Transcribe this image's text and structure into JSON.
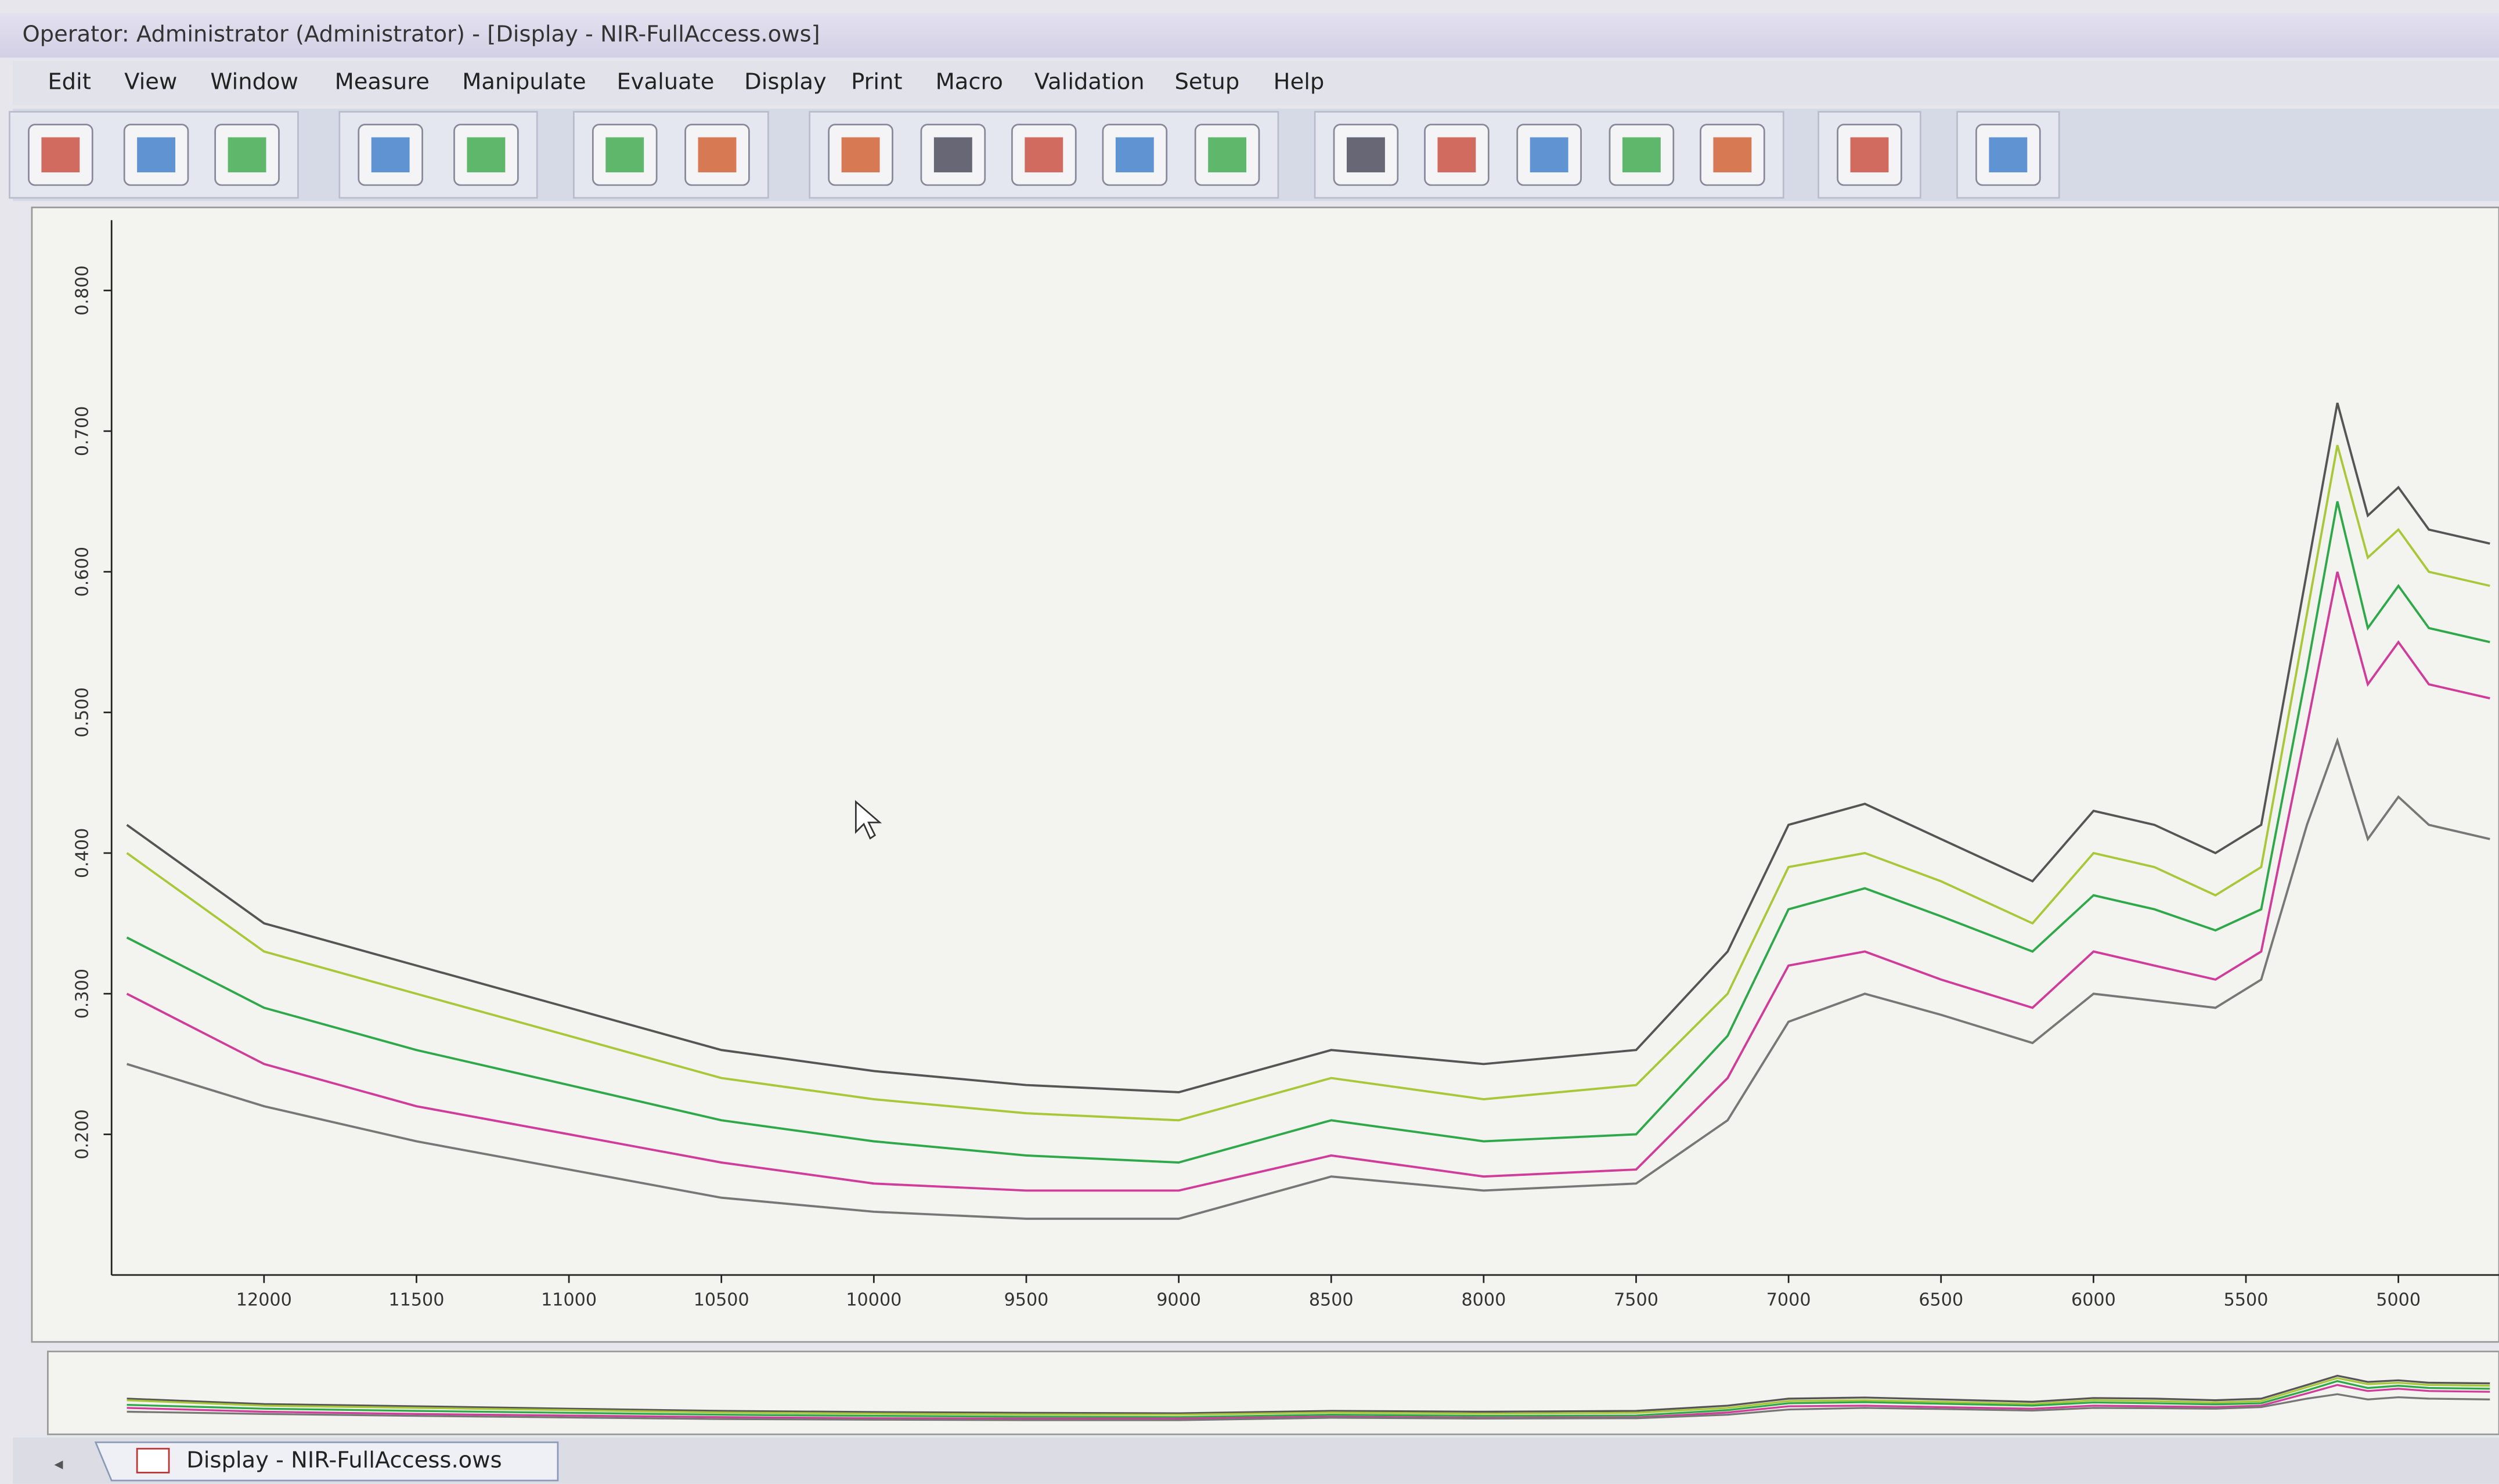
{
  "window": {
    "title": "Operator: Administrator (Administrator) - [Display - NIR-FullAccess.ows]",
    "menu": [
      "Edit",
      "View",
      "Window",
      "Measure",
      "Manipulate",
      "Evaluate",
      "Display",
      "Print",
      "Macro",
      "Validation",
      "Setup",
      "Help"
    ],
    "tab": "Display - NIR-FullAccess.ows"
  },
  "chart_data": {
    "type": "line",
    "x": [
      12450,
      12000,
      11500,
      11000,
      10500,
      10000,
      9500,
      9000,
      8500,
      8000,
      7500,
      7200,
      7000,
      6750,
      6500,
      6200,
      6000,
      5800,
      5600,
      5450,
      5300,
      5200,
      5100,
      5000,
      4900,
      4700
    ],
    "series": [
      {
        "color": "#555555",
        "values": [
          0.42,
          0.35,
          0.32,
          0.29,
          0.26,
          0.245,
          0.235,
          0.23,
          0.26,
          0.25,
          0.26,
          0.33,
          0.42,
          0.435,
          0.41,
          0.38,
          0.43,
          0.42,
          0.4,
          0.42,
          0.6,
          0.72,
          0.64,
          0.66,
          0.63,
          0.62
        ]
      },
      {
        "color": "#a8c83a",
        "values": [
          0.4,
          0.33,
          0.3,
          0.27,
          0.24,
          0.225,
          0.215,
          0.21,
          0.24,
          0.225,
          0.235,
          0.3,
          0.39,
          0.4,
          0.38,
          0.35,
          0.4,
          0.39,
          0.37,
          0.39,
          0.57,
          0.69,
          0.61,
          0.63,
          0.6,
          0.59
        ]
      },
      {
        "color": "#2fa84a",
        "values": [
          0.34,
          0.29,
          0.26,
          0.235,
          0.21,
          0.195,
          0.185,
          0.18,
          0.21,
          0.195,
          0.2,
          0.27,
          0.36,
          0.375,
          0.355,
          0.33,
          0.37,
          0.36,
          0.345,
          0.36,
          0.53,
          0.65,
          0.56,
          0.59,
          0.56,
          0.55
        ]
      },
      {
        "color": "#d03c9a",
        "values": [
          0.3,
          0.25,
          0.22,
          0.2,
          0.18,
          0.165,
          0.16,
          0.16,
          0.185,
          0.17,
          0.175,
          0.24,
          0.32,
          0.33,
          0.31,
          0.29,
          0.33,
          0.32,
          0.31,
          0.33,
          0.49,
          0.6,
          0.52,
          0.55,
          0.52,
          0.51
        ]
      },
      {
        "color": "#777777",
        "values": [
          0.25,
          0.22,
          0.195,
          0.175,
          0.155,
          0.145,
          0.14,
          0.14,
          0.17,
          0.16,
          0.165,
          0.21,
          0.28,
          0.3,
          0.285,
          0.265,
          0.3,
          0.295,
          0.29,
          0.31,
          0.42,
          0.48,
          0.41,
          0.44,
          0.42,
          0.41
        ]
      }
    ],
    "xlim": [
      12500,
      4670
    ],
    "xticks": [
      12000,
      11500,
      11000,
      10500,
      10000,
      9500,
      9000,
      8500,
      8000,
      7500,
      7000,
      6500,
      6000,
      5500,
      5000
    ],
    "ylim": [
      0.1,
      0.85
    ],
    "yticks": [
      {
        "value": 0.2,
        "label": "0.200"
      },
      {
        "value": 0.3,
        "label": "0.300"
      },
      {
        "value": 0.4,
        "label": "0.400"
      },
      {
        "value": 0.5,
        "label": "0.500"
      },
      {
        "value": 0.6,
        "label": "0.600"
      },
      {
        "value": 0.7,
        "label": "0.700"
      },
      {
        "value": 0.8,
        "label": "0.800"
      }
    ]
  }
}
